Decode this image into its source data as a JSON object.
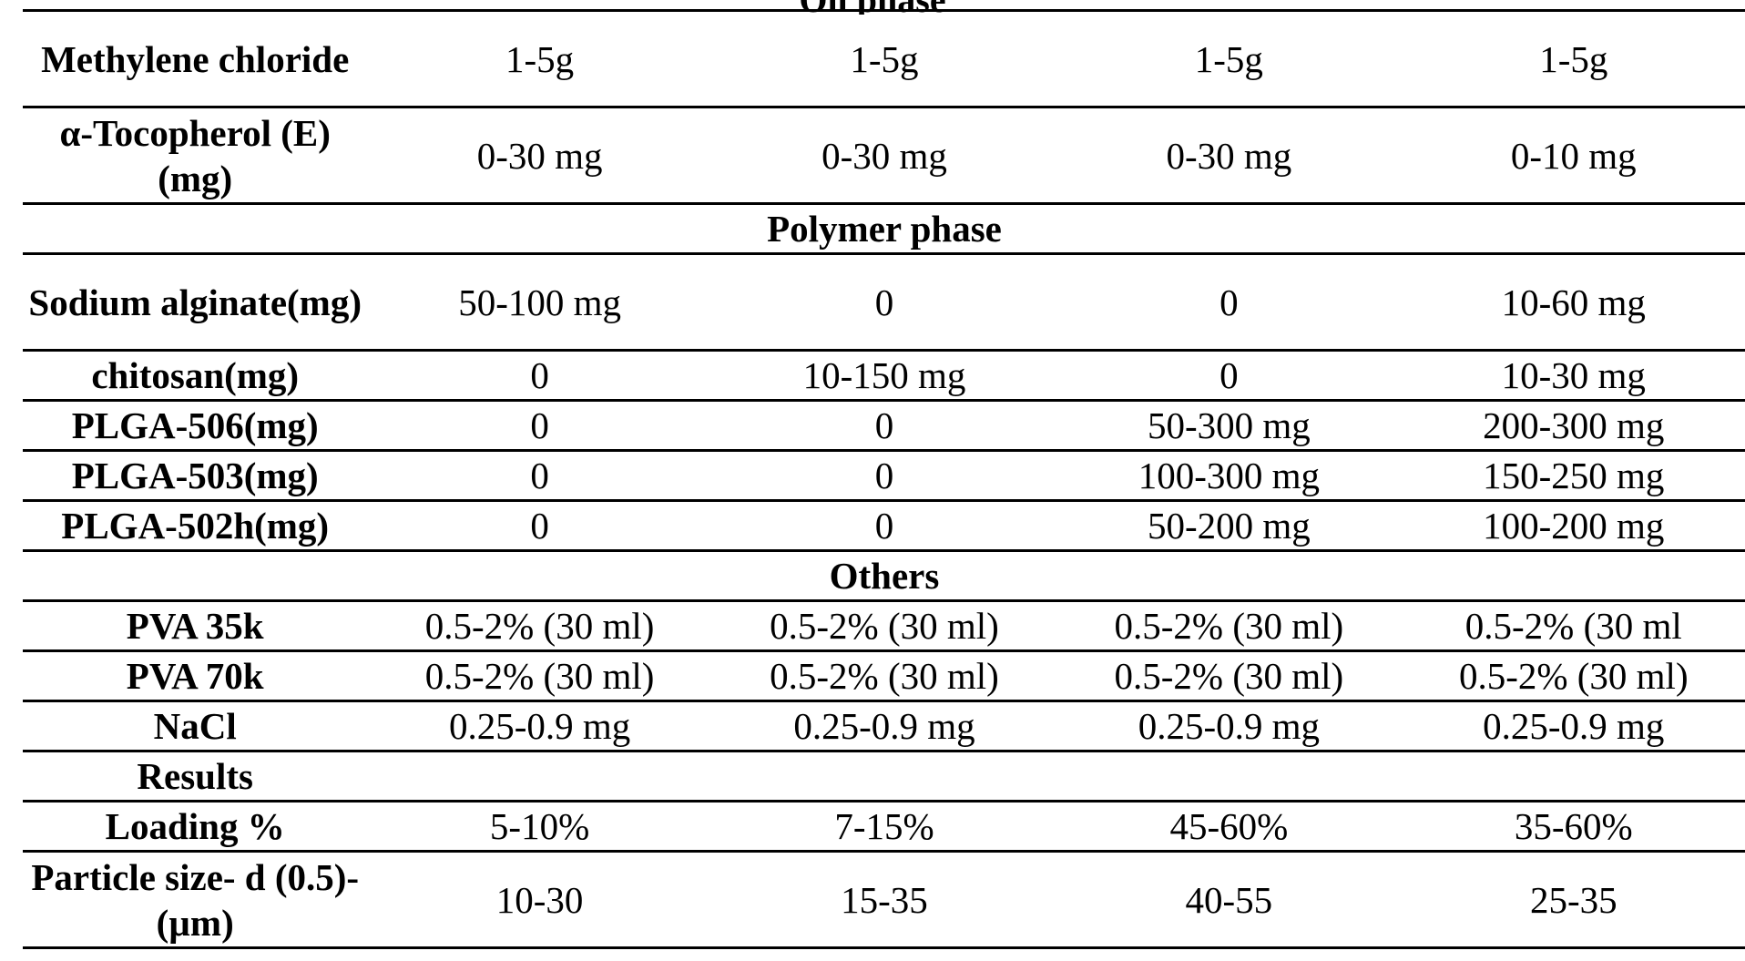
{
  "clipped_header": "Oil phase",
  "sections": {
    "polymer": "Polymer phase",
    "others": "Others",
    "results": "Results"
  },
  "oil_rows": [
    {
      "label": "Methylene chloride",
      "values": [
        "1-5g",
        "1-5g",
        "1-5g",
        "1-5g"
      ]
    },
    {
      "label": "α-Tocopherol (E) (mg)",
      "values": [
        "0-30 mg",
        "0-30 mg",
        "0-30 mg",
        "0-10 mg"
      ]
    }
  ],
  "polymer_rows": [
    {
      "label": "Sodium alginate(mg)",
      "values": [
        "50-100 mg",
        "0",
        "0",
        "10-60 mg"
      ]
    },
    {
      "label": "chitosan(mg)",
      "values": [
        "0",
        "10-150 mg",
        "0",
        "10-30 mg"
      ]
    },
    {
      "label": "PLGA-506(mg)",
      "values": [
        "0",
        "0",
        "50-300 mg",
        "200-300 mg"
      ]
    },
    {
      "label": "PLGA-503(mg)",
      "values": [
        "0",
        "0",
        "100-300 mg",
        "150-250 mg"
      ]
    },
    {
      "label": "PLGA-502h(mg)",
      "values": [
        "0",
        "0",
        "50-200 mg",
        "100-200 mg"
      ]
    }
  ],
  "other_rows": [
    {
      "label": "PVA 35k",
      "values": [
        "0.5-2% (30 ml)",
        "0.5-2% (30 ml)",
        "0.5-2% (30 ml)",
        "0.5-2% (30 ml"
      ]
    },
    {
      "label": "PVA 70k",
      "values": [
        "0.5-2% (30 ml)",
        "0.5-2% (30 ml)",
        "0.5-2% (30 ml)",
        "0.5-2% (30 ml)"
      ]
    },
    {
      "label": "NaCl",
      "values": [
        "0.25-0.9 mg",
        "0.25-0.9 mg",
        "0.25-0.9 mg",
        "0.25-0.9 mg"
      ]
    }
  ],
  "result_rows": [
    {
      "label": "Loading %",
      "values": [
        "5-10%",
        "7-15%",
        "45-60%",
        "35-60%"
      ]
    },
    {
      "label": "Particle size- d (0.5)-(µm)",
      "values": [
        "10-30",
        "15-35",
        "40-55",
        "25-35"
      ]
    }
  ]
}
